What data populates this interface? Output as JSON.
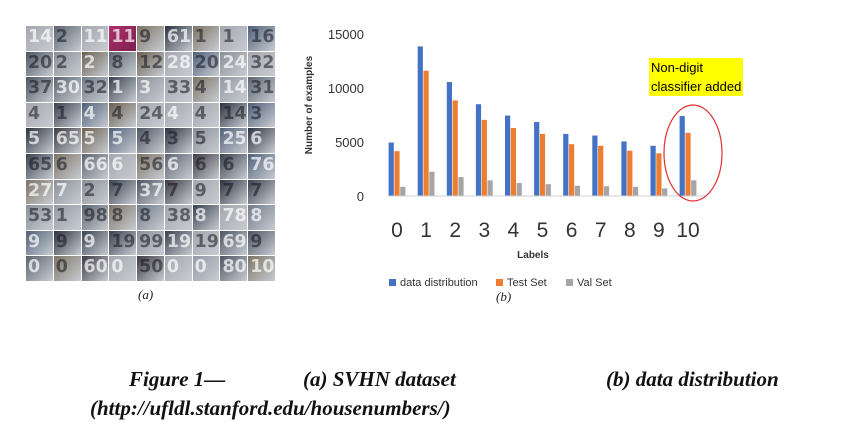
{
  "figure": {
    "panel_a_label": "(a)",
    "panel_b_label": "(b)",
    "caption": {
      "part1": "Figure 1—",
      "part2": "(a)  SVHN dataset",
      "part3": "(b) data distribution",
      "part4": "(http://ufldl.stanford.edu/housenumbers/)"
    }
  },
  "mosaic": {
    "rows": [
      [
        "14",
        "2",
        "112",
        "11",
        "9",
        "61",
        "1",
        "1",
        "16"
      ],
      [
        "20",
        "2",
        "2",
        "8",
        "12",
        "28",
        "20",
        "24",
        "32"
      ],
      [
        "37",
        "30",
        "32",
        "1",
        "3",
        "33",
        "4",
        "14",
        "31"
      ],
      [
        "4",
        "1",
        "4",
        "4",
        "24",
        "4",
        "4",
        "14",
        "3"
      ],
      [
        "5",
        "65",
        "5",
        "5",
        "4",
        "3",
        "5",
        "25",
        "6"
      ],
      [
        "65",
        "6",
        "66",
        "6",
        "56",
        "6",
        "6",
        "6",
        "76"
      ],
      [
        "27",
        "7",
        "2",
        "7",
        "371",
        "7",
        "9",
        "7",
        "7"
      ],
      [
        "53",
        "1",
        "98",
        "8",
        "8",
        "38",
        "8",
        "78",
        "8"
      ],
      [
        "9",
        "9",
        "9",
        "19",
        "99",
        "19",
        "19",
        "69",
        "9"
      ],
      [
        "0",
        "0",
        "60",
        "0",
        "50",
        "0",
        "0",
        "80",
        "10"
      ]
    ]
  },
  "chart_data": {
    "type": "bar",
    "categories": [
      "0",
      "1",
      "2",
      "3",
      "4",
      "5",
      "6",
      "7",
      "8",
      "9",
      "10"
    ],
    "series": [
      {
        "name": "data distribution",
        "color": "#4472C4",
        "values": [
          4950,
          13850,
          10550,
          8500,
          7450,
          6850,
          5750,
          5600,
          5050,
          4650,
          7400
        ]
      },
      {
        "name": "Test Set",
        "color": "#ED7D31",
        "values": [
          4150,
          11600,
          8850,
          7050,
          6300,
          5750,
          4800,
          4650,
          4200,
          3950,
          5850
        ]
      },
      {
        "name": "Val Set",
        "color": "#A5A5A5",
        "values": [
          850,
          2250,
          1750,
          1450,
          1200,
          1100,
          950,
          900,
          850,
          700,
          1450
        ]
      }
    ],
    "xlabel": "Labels",
    "ylabel": "Number of examples",
    "yticks": [
      0,
      5000,
      10000,
      15000
    ],
    "ylim": [
      0,
      15000
    ],
    "grid": false,
    "legend": "bottom",
    "annotation": {
      "text_line1": "Non-digit",
      "text_line2": "classifier added",
      "highlight_color": "#FFFF00",
      "circle_color": "#E03030"
    }
  }
}
